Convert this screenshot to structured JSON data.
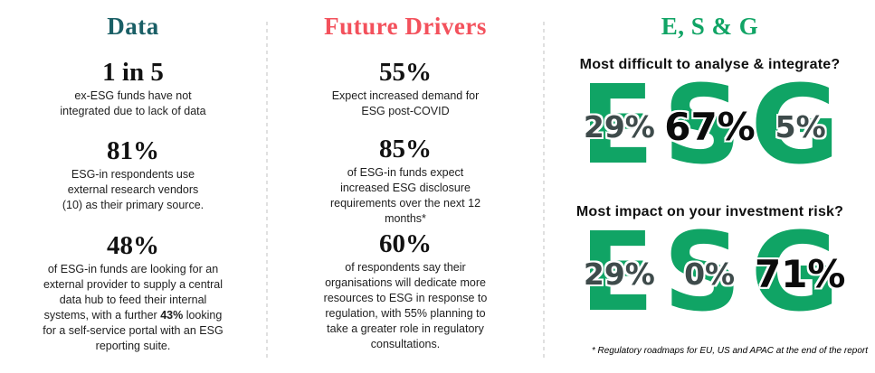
{
  "columns": [
    {
      "title": "Data",
      "stats": [
        {
          "value": "1 in 5",
          "desc": "ex-ESG funds have not\nintegrated due to lack of data"
        },
        {
          "value": "81%",
          "desc": "ESG-in respondents use\nexternal research vendors\n(10) as their primary source."
        },
        {
          "value": "48%",
          "desc_pre": "of ESG-in funds are looking for an\nexternal provider to supply a central\ndata hub to feed their internal\nsystems, with a further ",
          "desc_bold": "43%",
          "desc_post": " looking\nfor a self-service portal with an ESG\nreporting suite."
        }
      ]
    },
    {
      "title": "Future Drivers",
      "stats": [
        {
          "value": "55%",
          "desc": "Expect increased demand for\nESG post-COVID"
        },
        {
          "value": "85%",
          "desc": "of ESG-in funds expect\nincreased ESG disclosure\nrequirements over the next 12\nmonths*"
        },
        {
          "value": "60%",
          "desc": "of respondents say their\norganisations will dedicate more\nresources to ESG in response to\nregulation, with 55% planning to\ntake a greater role in regulatory\nconsultations."
        }
      ]
    }
  ],
  "esg": {
    "title": "E, S & G",
    "blocks": [
      {
        "question": "Most difficult to analyse & integrate?",
        "word": "ESG",
        "values": [
          {
            "label": "29%",
            "color": "#3E4B4B"
          },
          {
            "label": "67%",
            "color": "#0B0B0B"
          },
          {
            "label": "5%",
            "color": "#3E4B4B"
          }
        ]
      },
      {
        "question": "Most impact on your investment risk?",
        "word": "ESG",
        "values": [
          {
            "label": "29%",
            "color": "#3E4B4B"
          },
          {
            "label": "0%",
            "color": "#3E4B4B"
          },
          {
            "label": "71%",
            "color": "#0B0B0B"
          }
        ]
      }
    ],
    "footnote": "* Regulatory roadmaps for EU, US and APAC at the end of the report"
  },
  "colors": {
    "data_title": "#1A5F66",
    "future_title": "#F3515C",
    "esg_green": "#10A465",
    "pct_gray": "#3E4B4B",
    "pct_black": "#0B0B0B"
  },
  "chart_data": [
    {
      "type": "bar",
      "title": "Most difficult to analyse & integrate?",
      "categories": [
        "E",
        "S",
        "G"
      ],
      "values": [
        29,
        67,
        5
      ],
      "unit": "%"
    },
    {
      "type": "bar",
      "title": "Most impact on your investment risk?",
      "categories": [
        "E",
        "S",
        "G"
      ],
      "values": [
        29,
        0,
        71
      ],
      "unit": "%"
    }
  ]
}
